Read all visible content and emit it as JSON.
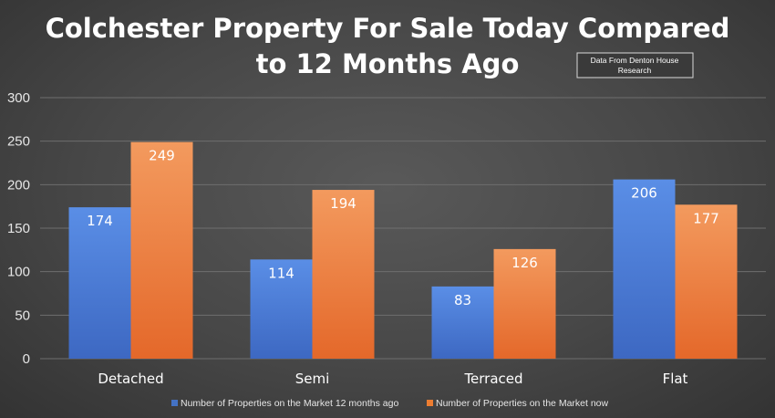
{
  "chart_data": {
    "type": "bar",
    "title_lines": [
      "Colchester Property For Sale Today Compared",
      "to 12 Months Ago"
    ],
    "note_lines": [
      "Data From Denton House",
      "Research"
    ],
    "categories": [
      "Detached",
      "Semi",
      "Terraced",
      "Flat"
    ],
    "series": [
      {
        "name": "Number of Properties on the Market 12 months ago",
        "color": "#4472c4",
        "values": [
          174,
          114,
          83,
          206
        ]
      },
      {
        "name": "Number of Properties on the Market now",
        "color": "#ed7d31",
        "values": [
          249,
          194,
          126,
          177
        ]
      }
    ],
    "ylim": [
      0,
      300
    ],
    "yticks": [
      0,
      50,
      100,
      150,
      200,
      250,
      300
    ],
    "grid": true,
    "data_labels": true,
    "legend_position": "bottom"
  }
}
